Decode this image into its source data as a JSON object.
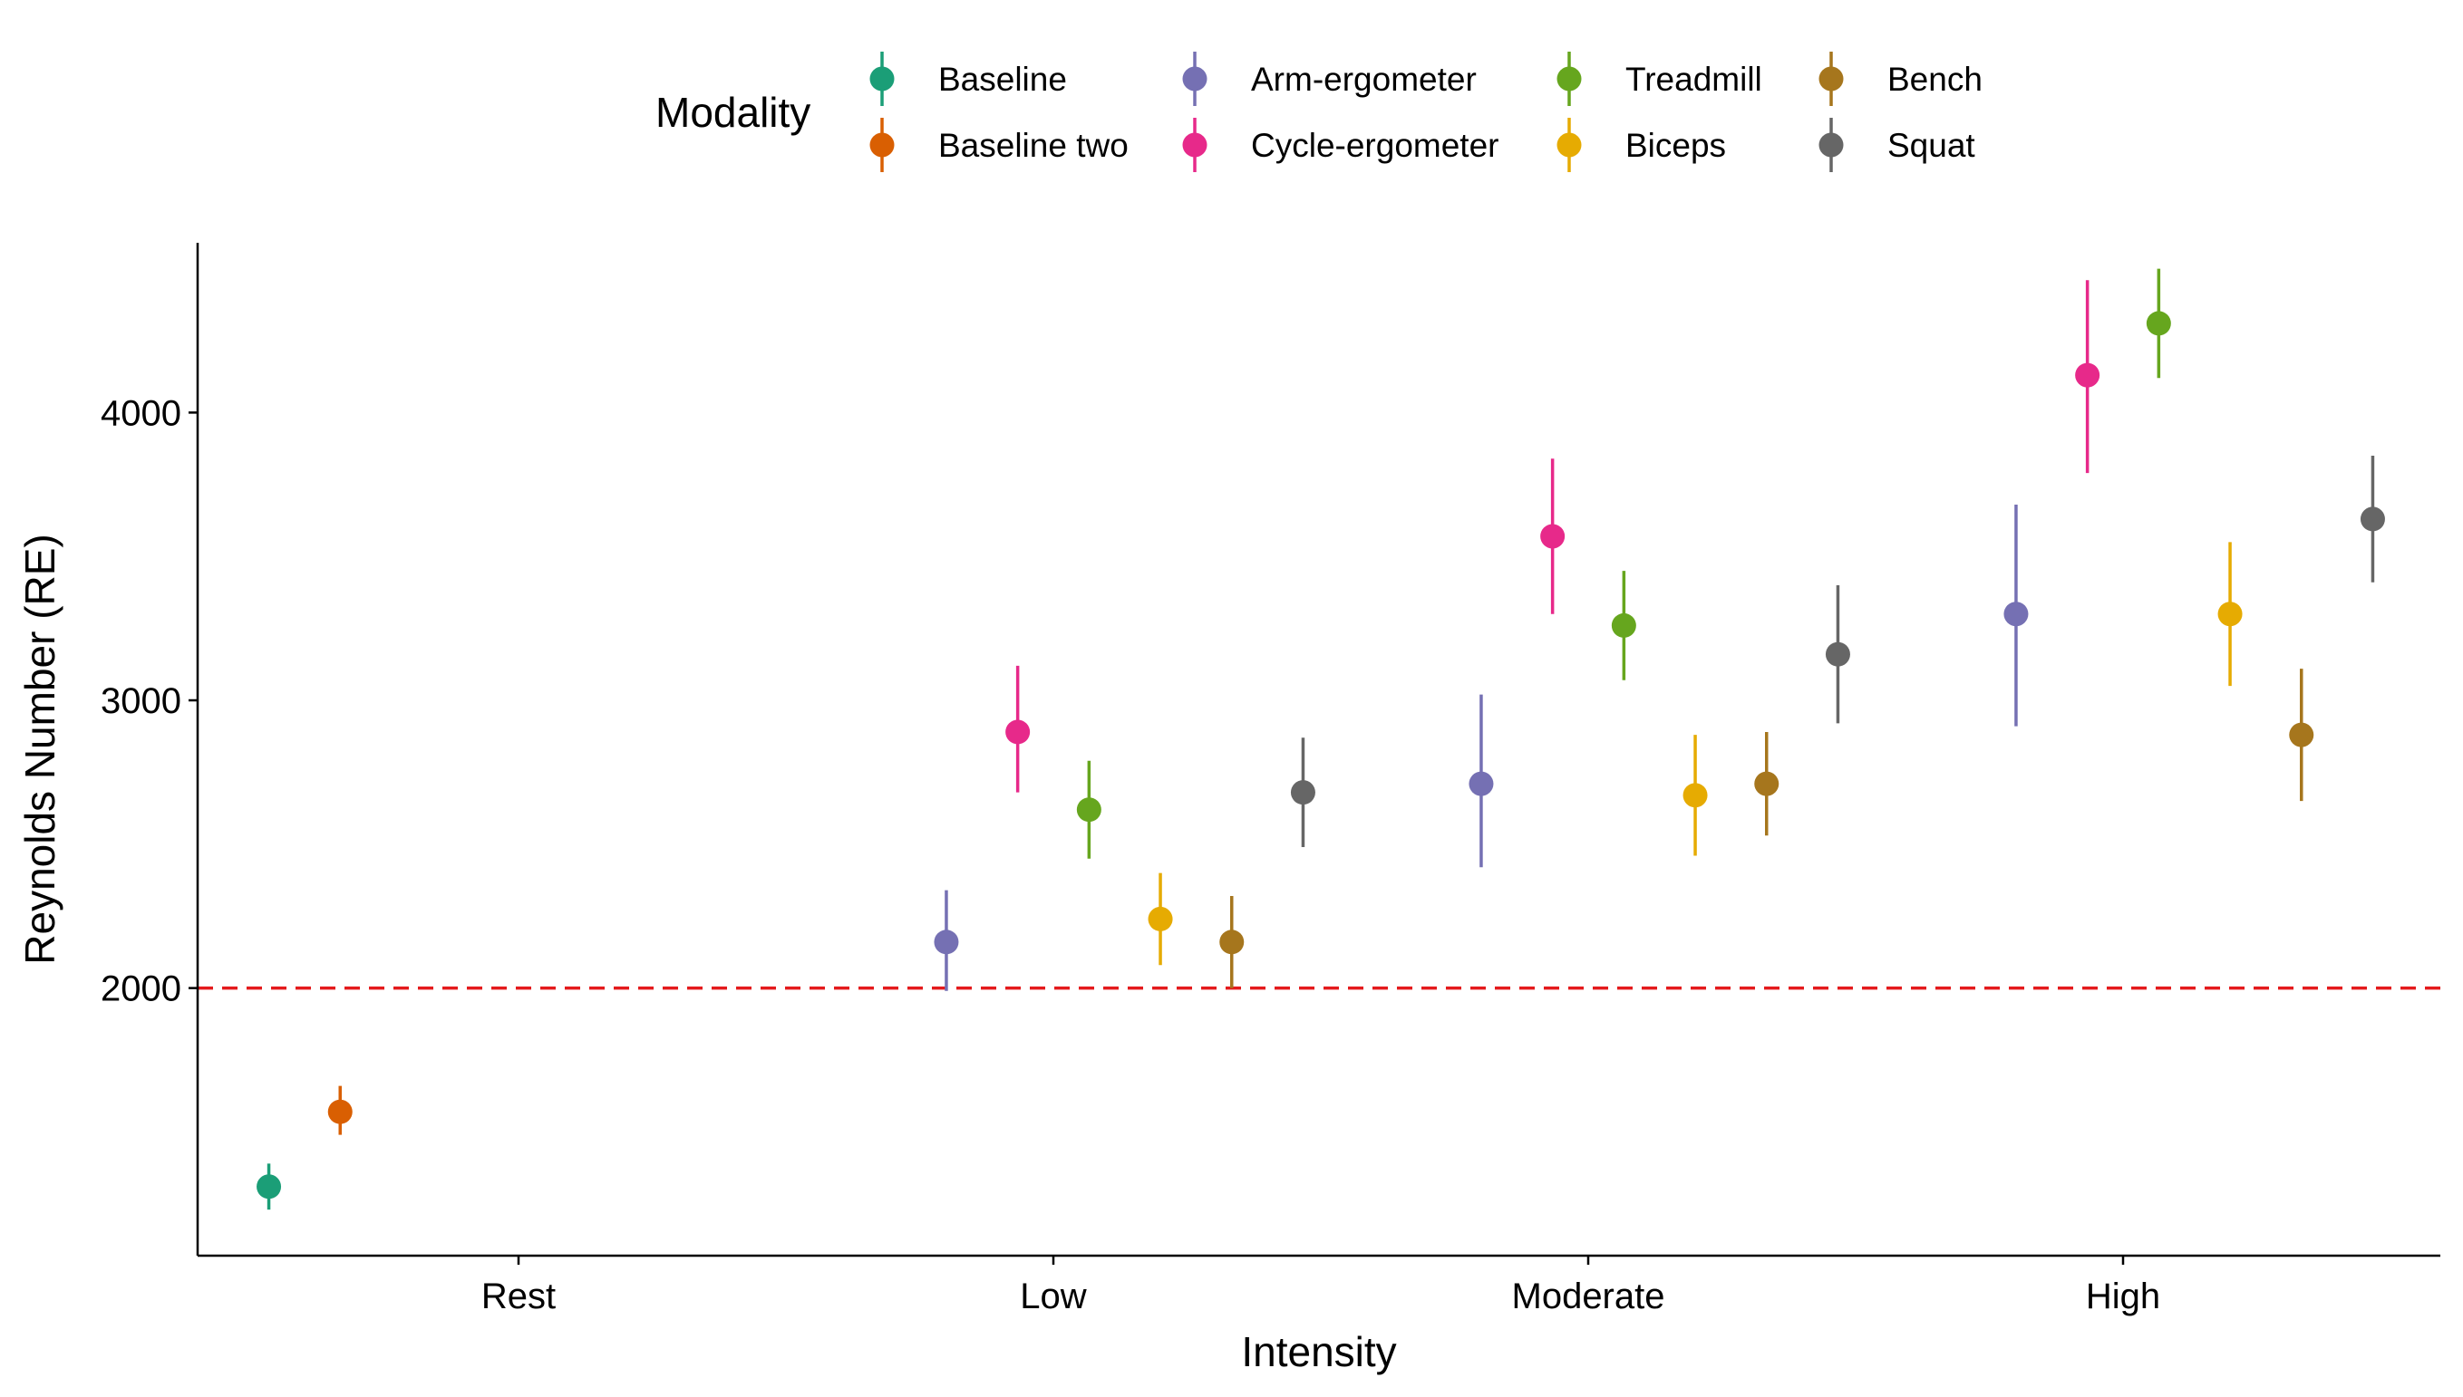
{
  "chart_data": {
    "type": "scatter",
    "subtype": "point-range (mean with error bars), dodged by modality",
    "xlabel": "Intensity",
    "ylabel": "Reynolds Number (RE)",
    "categories": [
      "Rest",
      "Low",
      "Moderate",
      "High"
    ],
    "y_ticks": [
      2000,
      3000,
      4000
    ],
    "y_tick_labels": [
      "2000",
      "3000",
      "4000"
    ],
    "ylim": [
      1070,
      4590
    ],
    "grid": false,
    "reference_line": {
      "y": 2000,
      "style": "dashed",
      "color": "#E41A1C"
    },
    "legend": {
      "title": "Modality",
      "position": "top",
      "entries": [
        "Baseline",
        "Baseline two",
        "Arm-ergometer",
        "Cycle-ergometer",
        "Treadmill",
        "Biceps",
        "Bench",
        "Squat"
      ]
    },
    "series": [
      {
        "name": "Baseline",
        "color": "#1B9E77",
        "points": [
          {
            "category": "Rest",
            "y": 1310,
            "lo": 1230,
            "hi": 1390
          }
        ]
      },
      {
        "name": "Baseline two",
        "color": "#D95F02",
        "points": [
          {
            "category": "Rest",
            "y": 1570,
            "lo": 1490,
            "hi": 1660
          }
        ]
      },
      {
        "name": "Arm-ergometer",
        "color": "#7570B3",
        "points": [
          {
            "category": "Low",
            "y": 2160,
            "lo": 1990,
            "hi": 2340
          },
          {
            "category": "Moderate",
            "y": 2710,
            "lo": 2420,
            "hi": 3020
          },
          {
            "category": "High",
            "y": 3300,
            "lo": 2910,
            "hi": 3680
          }
        ]
      },
      {
        "name": "Cycle-ergometer",
        "color": "#E7298A",
        "points": [
          {
            "category": "Low",
            "y": 2890,
            "lo": 2680,
            "hi": 3120
          },
          {
            "category": "Moderate",
            "y": 3570,
            "lo": 3300,
            "hi": 3840
          },
          {
            "category": "High",
            "y": 4130,
            "lo": 3790,
            "hi": 4460
          }
        ]
      },
      {
        "name": "Treadmill",
        "color": "#66A61E",
        "points": [
          {
            "category": "Low",
            "y": 2620,
            "lo": 2450,
            "hi": 2790
          },
          {
            "category": "Moderate",
            "y": 3260,
            "lo": 3070,
            "hi": 3450
          },
          {
            "category": "High",
            "y": 4310,
            "lo": 4120,
            "hi": 4500
          }
        ]
      },
      {
        "name": "Biceps",
        "color": "#E6AB02",
        "points": [
          {
            "category": "Low",
            "y": 2240,
            "lo": 2080,
            "hi": 2400
          },
          {
            "category": "Moderate",
            "y": 2670,
            "lo": 2460,
            "hi": 2880
          },
          {
            "category": "High",
            "y": 3300,
            "lo": 3050,
            "hi": 3550
          }
        ]
      },
      {
        "name": "Bench",
        "color": "#A6761D",
        "points": [
          {
            "category": "Low",
            "y": 2160,
            "lo": 2000,
            "hi": 2320
          },
          {
            "category": "Moderate",
            "y": 2710,
            "lo": 2530,
            "hi": 2890
          },
          {
            "category": "High",
            "y": 2880,
            "lo": 2650,
            "hi": 3110
          }
        ]
      },
      {
        "name": "Squat",
        "color": "#666666",
        "points": [
          {
            "category": "Low",
            "y": 2680,
            "lo": 2490,
            "hi": 2870
          },
          {
            "category": "Moderate",
            "y": 3160,
            "lo": 2920,
            "hi": 3400
          },
          {
            "category": "High",
            "y": 3630,
            "lo": 3410,
            "hi": 3850
          }
        ]
      }
    ]
  }
}
